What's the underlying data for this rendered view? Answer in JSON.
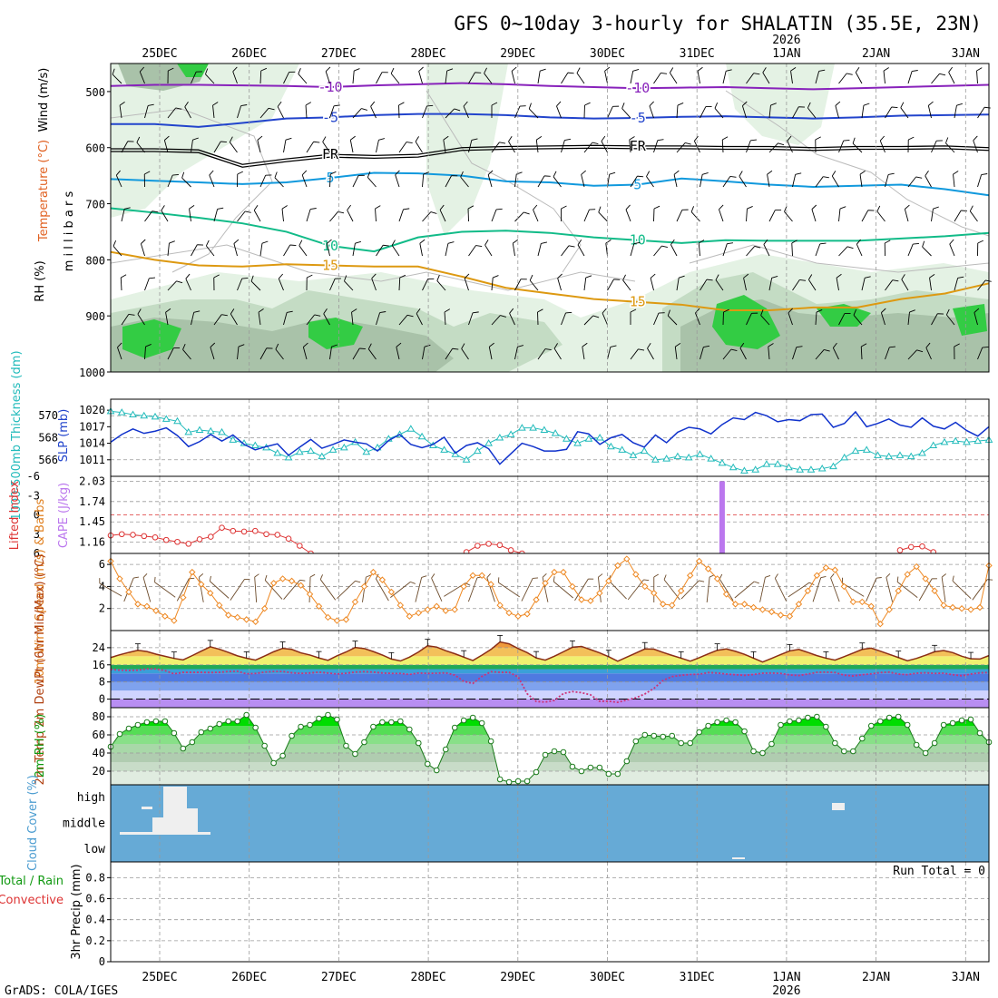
{
  "title": "GFS 0~10day 3-hourly for SHALATIN (35.5E, 23N)",
  "credit": "GrADS: COLA/IGES",
  "dates": [
    "25DEC",
    "26DEC",
    "27DEC",
    "28DEC",
    "29DEC",
    "30DEC",
    "31DEC",
    "1JAN",
    "2JAN",
    "3JAN"
  ],
  "year_label": "2026",
  "colors": {
    "rh_green": "#33cc44",
    "rh_light": "#e4f2e4",
    "rh_mid": "#c4dcc4",
    "rh_dark": "#a9c2a9",
    "slp": "#1133cc",
    "thickness": "#22bbbb",
    "lifted_index": "#dd3333",
    "cape": "#bb77ee",
    "wind_speed": "#ee8822",
    "barbs": "#6b4a2a",
    "rh2m": "#00cc00",
    "cloud": "#66aad6"
  },
  "chart_data": [
    {
      "panel": "upper-air",
      "type": "contour",
      "ylabel_parts": [
        "RH (%)",
        "Temperature (°C)",
        "Wind (m/s)"
      ],
      "ylabel_units": "m i l l i b a r s",
      "y_ticks": [
        "500",
        "600",
        "700",
        "800",
        "900",
        "1000"
      ],
      "ylim": [
        450,
        1000
      ],
      "isotherms": [
        {
          "label": "-10",
          "color": "#8822bb",
          "p": [
            490,
            488,
            488,
            489,
            490,
            492,
            489,
            487,
            485,
            487,
            490,
            492,
            494,
            493,
            492,
            494,
            496,
            494,
            492,
            490,
            488
          ]
        },
        {
          "label": "-5",
          "color": "#2244cc",
          "p": [
            558,
            558,
            563,
            556,
            548,
            546,
            542,
            540,
            540,
            542,
            546,
            548,
            547,
            545,
            544,
            546,
            548,
            546,
            543,
            542,
            541
          ]
        },
        {
          "label": "FR",
          "color": "#000000",
          "p": [
            602,
            602,
            604,
            630,
            620,
            612,
            614,
            612,
            600,
            598,
            597,
            596,
            597,
            597,
            598,
            598,
            600,
            598,
            598,
            597,
            600
          ]
        },
        {
          "label": "5",
          "color": "#1199dd",
          "p": [
            656,
            659,
            662,
            665,
            662,
            654,
            645,
            646,
            650,
            660,
            662,
            668,
            666,
            655,
            660,
            666,
            670,
            668,
            666,
            674,
            685
          ]
        },
        {
          "label": "10",
          "color": "#11bb88",
          "p": [
            708,
            716,
            725,
            735,
            750,
            775,
            785,
            760,
            750,
            748,
            752,
            760,
            765,
            770,
            765,
            766,
            766,
            766,
            762,
            758,
            752
          ]
        },
        {
          "label": "15",
          "color": "#dd9911",
          "p": [
            786,
            800,
            810,
            812,
            808,
            810,
            812,
            812,
            830,
            850,
            860,
            870,
            875,
            880,
            890,
            890,
            885,
            885,
            870,
            860,
            842
          ]
        }
      ],
      "rh_contours": [
        "10",
        "30",
        "50",
        "70"
      ]
    },
    {
      "panel": "slp-thickness",
      "type": "line",
      "ylabel_left": "1000-500mb Thickness (dm)",
      "ylabel_right": "SLP (mb)",
      "left_ticks": [
        "566",
        "568",
        "570"
      ],
      "right_ticks": [
        "1011",
        "1014",
        "1017",
        "1020"
      ],
      "series": [
        {
          "name": "SLP (mb)",
          "color": "#1133cc",
          "ylim": [
            1008,
            1022
          ],
          "values": [
            1014.2,
            1015.6,
            1016.6,
            1015.8,
            1016.2,
            1016.8,
            1015.4,
            1013.4,
            1014.3,
            1015.6,
            1014.4,
            1015.5,
            1013.8,
            1012.8,
            1013.4,
            1013.9,
            1011.8,
            1013.3,
            1014.7,
            1013.1,
            1013.8,
            1014.6,
            1014.2,
            1013.9,
            1012.6,
            1014.5,
            1015.6,
            1013.8,
            1013.2,
            1013.8,
            1015.1,
            1012.2,
            1013.6,
            1014.1,
            1013.0,
            1010.2,
            1012.1,
            1014.0,
            1013.4,
            1012.6,
            1012.6,
            1012.9,
            1016.1,
            1015.7,
            1013.8,
            1015.0,
            1015.6,
            1014.1,
            1013.3,
            1015.5,
            1014.1,
            1016.0,
            1016.9,
            1016.6,
            1015.7,
            1017.4,
            1018.6,
            1018.3,
            1019.6,
            1019.0,
            1017.9,
            1018.3,
            1018.1,
            1019.2,
            1019.3,
            1016.9,
            1017.6,
            1019.7,
            1017.0,
            1017.6,
            1018.4,
            1017.3,
            1016.9,
            1018.6,
            1017.1,
            1016.6,
            1017.8,
            1016.3,
            1015.3,
            1017.0
          ]
        },
        {
          "name": "Thickness (dm)",
          "color": "#22bbbb",
          "ylim": [
            564.5,
            571.5
          ],
          "values": [
            570.4,
            570.3,
            570.1,
            570.0,
            569.9,
            569.7,
            569.5,
            568.5,
            568.7,
            568.6,
            568.5,
            567.8,
            567.5,
            567.3,
            567.1,
            566.6,
            566.2,
            566.7,
            566.8,
            566.3,
            566.9,
            567.1,
            567.6,
            566.7,
            567.1,
            567.9,
            568.3,
            568.8,
            568.1,
            567.3,
            566.9,
            566.5,
            566.0,
            566.8,
            567.5,
            568.0,
            568.3,
            568.9,
            568.9,
            568.7,
            568.4,
            567.9,
            567.5,
            567.9,
            568.0,
            567.2,
            566.9,
            566.4,
            566.8,
            566.0,
            566.1,
            566.3,
            566.2,
            566.5,
            566.1,
            565.7,
            565.3,
            565.0,
            565.1,
            565.6,
            565.6,
            565.3,
            565.1,
            565.1,
            565.2,
            565.4,
            566.2,
            566.8,
            566.9,
            566.4,
            566.3,
            566.4,
            566.3,
            566.6,
            567.3,
            567.6,
            567.7,
            567.6,
            567.7,
            567.8
          ]
        }
      ]
    },
    {
      "panel": "lifted-index-cape",
      "type": "line",
      "ylabel_left": "Lifted Index",
      "ylabel_right": "CAPE (J/kg)",
      "left_ticks": [
        "-6",
        "-3",
        "0",
        "3",
        "6"
      ],
      "right_ticks": [
        "1.16",
        "1.45",
        "1.74",
        "2.03"
      ],
      "series": [
        {
          "name": "Lifted Index",
          "color": "#dd3333",
          "ylim": [
            -6,
            6
          ],
          "values": [
            3.2,
            3.0,
            3.1,
            3.3,
            3.5,
            3.9,
            4.2,
            4.5,
            3.8,
            3.4,
            2.0,
            2.5,
            2.6,
            2.5,
            3.0,
            3.1,
            3.7,
            4.8,
            6.0,
            null,
            null,
            null,
            null,
            null,
            null,
            null,
            null,
            null,
            null,
            null,
            null,
            null,
            5.8,
            4.8,
            4.5,
            4.7,
            5.5,
            6.0,
            null,
            null,
            null,
            null,
            null,
            null,
            null,
            null,
            null,
            null,
            null,
            null,
            null,
            null,
            null,
            null,
            null,
            null,
            null,
            null,
            null,
            null,
            null,
            null,
            null,
            null,
            null,
            null,
            null,
            null,
            null,
            null,
            null,
            5.5,
            5.0,
            4.9,
            5.8,
            null,
            null,
            null,
            null,
            null
          ]
        },
        {
          "name": "CAPE (J/kg)",
          "type": "bar",
          "color": "#bb77ee",
          "ylim": [
            1.0,
            2.1
          ],
          "x_index": 55,
          "value": 2.03
        }
      ]
    },
    {
      "panel": "wind-10m",
      "type": "line",
      "ylabel_left": "10m Wind Speed (m/s) & Barbs",
      "left_ticks": [
        "2",
        "4",
        "6"
      ],
      "ylim": [
        0,
        7
      ],
      "series": [
        {
          "name": "10m Wind Speed",
          "color": "#ee8822",
          "values": [
            6.3,
            4.7,
            3.5,
            2.4,
            2.2,
            1.8,
            1.3,
            0.9,
            3.0,
            5.3,
            4.2,
            3.4,
            2.3,
            1.4,
            1.2,
            1.0,
            0.8,
            2.0,
            4.3,
            4.7,
            4.5,
            4.1,
            3.3,
            2.2,
            1.2,
            0.9,
            1.0,
            2.6,
            4.0,
            5.3,
            4.6,
            3.5,
            2.3,
            1.3,
            1.6,
            1.9,
            2.2,
            1.8,
            1.9,
            4.0,
            5.0,
            5.0,
            4.2,
            2.3,
            1.6,
            1.3,
            1.5,
            2.8,
            4.3,
            5.3,
            5.3,
            4.0,
            2.8,
            2.7,
            3.4,
            4.5,
            5.9,
            6.5,
            5.1,
            4.0,
            3.4,
            2.4,
            2.3,
            3.6,
            5.0,
            6.3,
            5.6,
            4.7,
            3.3,
            2.4,
            2.4,
            2.1,
            1.9,
            1.7,
            1.4,
            1.3,
            2.4,
            3.6,
            5.0,
            5.7,
            5.5,
            4.0,
            2.6,
            2.6,
            2.2,
            0.6,
            1.9,
            3.6,
            5.1,
            5.8,
            4.7,
            3.6,
            2.3,
            2.1,
            2.0,
            1.9,
            2.1,
            5.9
          ]
        }
      ]
    },
    {
      "panel": "temp-2m",
      "type": "area",
      "ylabel_left": "2m Temp 2m DewPt (6hr Min/Max) (°C)",
      "left_ticks": [
        "0",
        "8",
        "16",
        "24"
      ],
      "ylim": [
        -4,
        32
      ],
      "series": [
        {
          "name": "2m Temp",
          "color": "#8b2e16",
          "values": [
            19.4,
            20.7,
            21.8,
            22.8,
            22.2,
            21.0,
            20.0,
            19.0,
            18.3,
            20.3,
            22.4,
            24.4,
            23.3,
            21.8,
            20.2,
            19.1,
            18.2,
            20.1,
            22.1,
            23.7,
            23.2,
            21.6,
            20.6,
            19.2,
            18.1,
            20.2,
            22.0,
            24.1,
            23.6,
            22.2,
            20.6,
            18.7,
            17.8,
            19.6,
            22.0,
            24.9,
            24.3,
            22.6,
            21.2,
            19.6,
            18.0,
            20.5,
            23.2,
            26.7,
            25.8,
            23.6,
            21.7,
            19.2,
            18.2,
            20.0,
            22.1,
            24.2,
            24.6,
            23.1,
            21.6,
            19.8,
            17.7,
            19.6,
            21.5,
            23.4,
            23.3,
            21.8,
            20.4,
            19.1,
            17.7,
            19.3,
            21.1,
            22.8,
            23.4,
            22.3,
            20.9,
            19.1,
            17.3,
            19.0,
            20.8,
            22.5,
            23.2,
            21.8,
            20.3,
            19.1,
            18.2,
            19.8,
            21.5,
            23.2,
            23.8,
            22.4,
            20.9,
            19.4,
            17.9,
            19.0,
            20.5,
            22.1,
            22.7,
            21.7,
            20.0,
            18.8,
            18.7,
            20.3
          ]
        },
        {
          "name": "2m DewPt",
          "color": "#cc3377",
          "values": [
            13.9,
            13.5,
            13.4,
            13.5,
            14.1,
            14.1,
            13.3,
            11.8,
            12.5,
            12.5,
            12.5,
            12.4,
            12.5,
            12.9,
            13.0,
            11.8,
            12.0,
            12.6,
            12.9,
            12.9,
            12.3,
            12.0,
            12.2,
            12.6,
            12.2,
            11.7,
            12.1,
            12.6,
            12.8,
            12.6,
            12.2,
            12.0,
            12.0,
            11.5,
            12.2,
            12.0,
            12.1,
            12.3,
            11.2,
            8.3,
            7.3,
            10.6,
            12.8,
            12.5,
            12.5,
            10.4,
            2.5,
            -1.1,
            -1.4,
            -0.6,
            2.6,
            3.5,
            3.0,
            2.0,
            -1.0,
            -1.0,
            -1.5,
            -0.4,
            0.6,
            2.4,
            5.0,
            8.7,
            10.5,
            11.1,
            11.5,
            11.6,
            12.4,
            12.2,
            11.7,
            11.4,
            11.1,
            11.5,
            12.1,
            12.2,
            12.0,
            11.3,
            11.0,
            11.7,
            12.5,
            12.6,
            12.4,
            11.2,
            10.8,
            11.4,
            11.8,
            12.4,
            12.6,
            11.7,
            11.4,
            12.1,
            12.3,
            12.0,
            12.1,
            11.4,
            10.9,
            11.7,
            12.3,
            12.4
          ]
        }
      ]
    },
    {
      "panel": "rh-2m",
      "type": "area",
      "ylabel_left": "2m RH (%)",
      "left_ticks": [
        "20",
        "40",
        "60",
        "80"
      ],
      "ylim": [
        5,
        90
      ],
      "series": [
        {
          "name": "2m RH",
          "color": "#00cc00",
          "values": [
            47,
            61,
            67,
            71,
            74,
            75,
            75,
            62,
            45,
            52,
            63,
            67,
            72,
            75,
            75,
            82,
            68,
            48,
            29,
            37,
            59,
            69,
            71,
            78,
            82,
            77,
            48,
            39,
            52,
            69,
            74,
            74,
            75,
            66,
            51,
            28,
            21,
            44,
            68,
            76,
            79,
            73,
            53,
            11,
            8,
            9,
            9,
            19,
            38,
            42,
            41,
            25,
            20,
            24,
            24,
            17,
            17,
            31,
            53,
            60,
            59,
            58,
            59,
            51,
            51,
            63,
            70,
            74,
            76,
            74,
            64,
            42,
            40,
            50,
            71,
            75,
            76,
            79,
            80,
            69,
            51,
            42,
            42,
            56,
            70,
            75,
            79,
            80,
            71,
            49,
            40,
            51,
            71,
            73,
            76,
            77,
            62,
            52
          ]
        }
      ]
    },
    {
      "panel": "cloud-cover",
      "type": "heatmap",
      "ylabel_left": "Cloud Cover (%)",
      "y_categories": [
        "low",
        "middle",
        "high"
      ]
    },
    {
      "panel": "precip",
      "type": "bar",
      "ylabel_left_parts": [
        "Total / Rain",
        "Convective"
      ],
      "ylabel_units": "3hr Precip (mm)",
      "left_ticks": [
        "0",
        "0.2",
        "0.4",
        "0.6",
        "0.8"
      ],
      "ylim": [
        0,
        0.95
      ],
      "run_total": "Run Total = 0",
      "values": []
    }
  ]
}
